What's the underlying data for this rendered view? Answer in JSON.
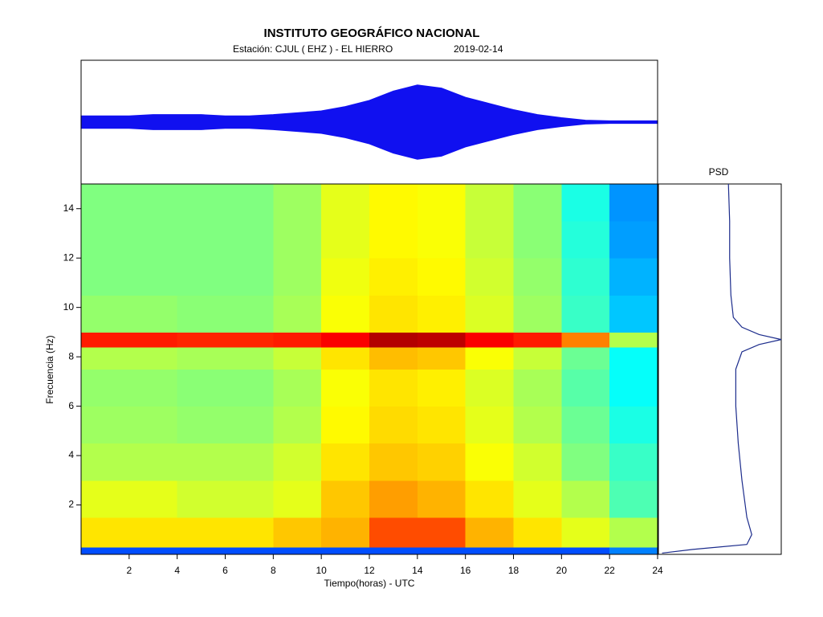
{
  "header": {
    "title": "INSTITUTO GEOGRÁFICO NACIONAL",
    "station": "Estación:  CJUL ( EHZ ) - EL HIERRO",
    "date": "2019-02-14"
  },
  "chart_data": [
    {
      "type": "envelope",
      "color": "#1010f0",
      "xlim": [
        0,
        24
      ],
      "ylim": [
        -10,
        10
      ],
      "x": [
        0,
        1,
        2,
        3,
        4,
        5,
        6,
        7,
        8,
        9,
        10,
        11,
        12,
        13,
        14,
        15,
        16,
        17,
        18,
        19,
        20,
        21,
        22,
        23,
        24
      ],
      "values": [
        1,
        1,
        1,
        1.2,
        1.2,
        1.2,
        1,
        1,
        1.2,
        1.5,
        1.8,
        2.5,
        3.5,
        5,
        6,
        5.5,
        4,
        3,
        2,
        1.2,
        0.7,
        0.3,
        0.2,
        0.2,
        0.2
      ]
    },
    {
      "type": "heatmap",
      "x_label": "Tiempo(horas) - UTC",
      "y_label": "Frecuencia  (Hz)",
      "xlim": [
        0,
        24
      ],
      "ylim": [
        0,
        15
      ],
      "xticks": [
        2,
        4,
        6,
        8,
        10,
        12,
        14,
        16,
        18,
        20,
        22,
        24
      ],
      "yticks": [
        2,
        4,
        6,
        8,
        10,
        12,
        14
      ],
      "x_bins": [
        0,
        2,
        4,
        6,
        8,
        10,
        12,
        14,
        16,
        18,
        20,
        22,
        24
      ],
      "y_bins": [
        0,
        0.3,
        1.5,
        3,
        4.5,
        6,
        7.5,
        8.4,
        9,
        10.5,
        12,
        13.5,
        15
      ],
      "zlim": [
        0,
        10
      ],
      "values": [
        [
          2,
          2,
          2,
          2,
          2,
          2,
          2,
          2,
          2,
          2,
          2,
          2.5
        ],
        [
          6.5,
          6.5,
          6.5,
          6.5,
          6.8,
          7,
          8,
          8,
          7,
          6.5,
          6,
          5.5
        ],
        [
          6,
          6,
          5.8,
          5.8,
          6,
          6.8,
          7.2,
          7,
          6.5,
          6,
          5.5,
          4.5
        ],
        [
          5.5,
          5.5,
          5.5,
          5.5,
          5.8,
          6.5,
          6.8,
          6.7,
          6.2,
          5.8,
          5,
          4.3
        ],
        [
          5.3,
          5.3,
          5.2,
          5.2,
          5.5,
          6.3,
          6.6,
          6.5,
          6,
          5.5,
          4.8,
          4
        ],
        [
          5.2,
          5.2,
          5.1,
          5.1,
          5.4,
          6.2,
          6.5,
          6.4,
          5.9,
          5.4,
          4.6,
          3.8
        ],
        [
          5.5,
          5.5,
          5.4,
          5.4,
          5.7,
          6.5,
          6.9,
          6.8,
          6.2,
          5.7,
          4.8,
          3.8
        ],
        [
          8.5,
          8.5,
          8.4,
          8.4,
          8.5,
          8.8,
          9.5,
          9.4,
          8.8,
          8.5,
          7.5,
          5.5
        ],
        [
          5.2,
          5.2,
          5.1,
          5.1,
          5.4,
          6.2,
          6.5,
          6.4,
          5.9,
          5.3,
          4.3,
          3.2
        ],
        [
          5,
          5,
          5,
          5,
          5.3,
          6.1,
          6.4,
          6.3,
          5.8,
          5.2,
          4.2,
          3
        ],
        [
          5,
          5,
          5,
          5,
          5.3,
          6,
          6.3,
          6.2,
          5.7,
          5.1,
          4.1,
          2.8
        ],
        [
          5,
          5,
          5,
          5,
          5.3,
          6,
          6.3,
          6.2,
          5.7,
          5.1,
          4,
          2.7
        ]
      ]
    },
    {
      "type": "psd",
      "title": "PSD",
      "color": "#1c2c8c",
      "xlim": [
        0,
        10
      ],
      "ylim": [
        0,
        15
      ],
      "y": [
        0.05,
        0.2,
        0.4,
        0.8,
        1.5,
        3,
        4.5,
        6,
        7.5,
        8.2,
        8.5,
        8.7,
        8.9,
        9.2,
        9.6,
        10.5,
        12,
        13.5,
        15
      ],
      "values": [
        0.3,
        2.8,
        7.2,
        7.6,
        7.2,
        6.8,
        6.5,
        6.3,
        6.3,
        6.8,
        8.2,
        10,
        8.2,
        6.8,
        6.1,
        5.9,
        5.8,
        5.8,
        5.7
      ]
    }
  ]
}
